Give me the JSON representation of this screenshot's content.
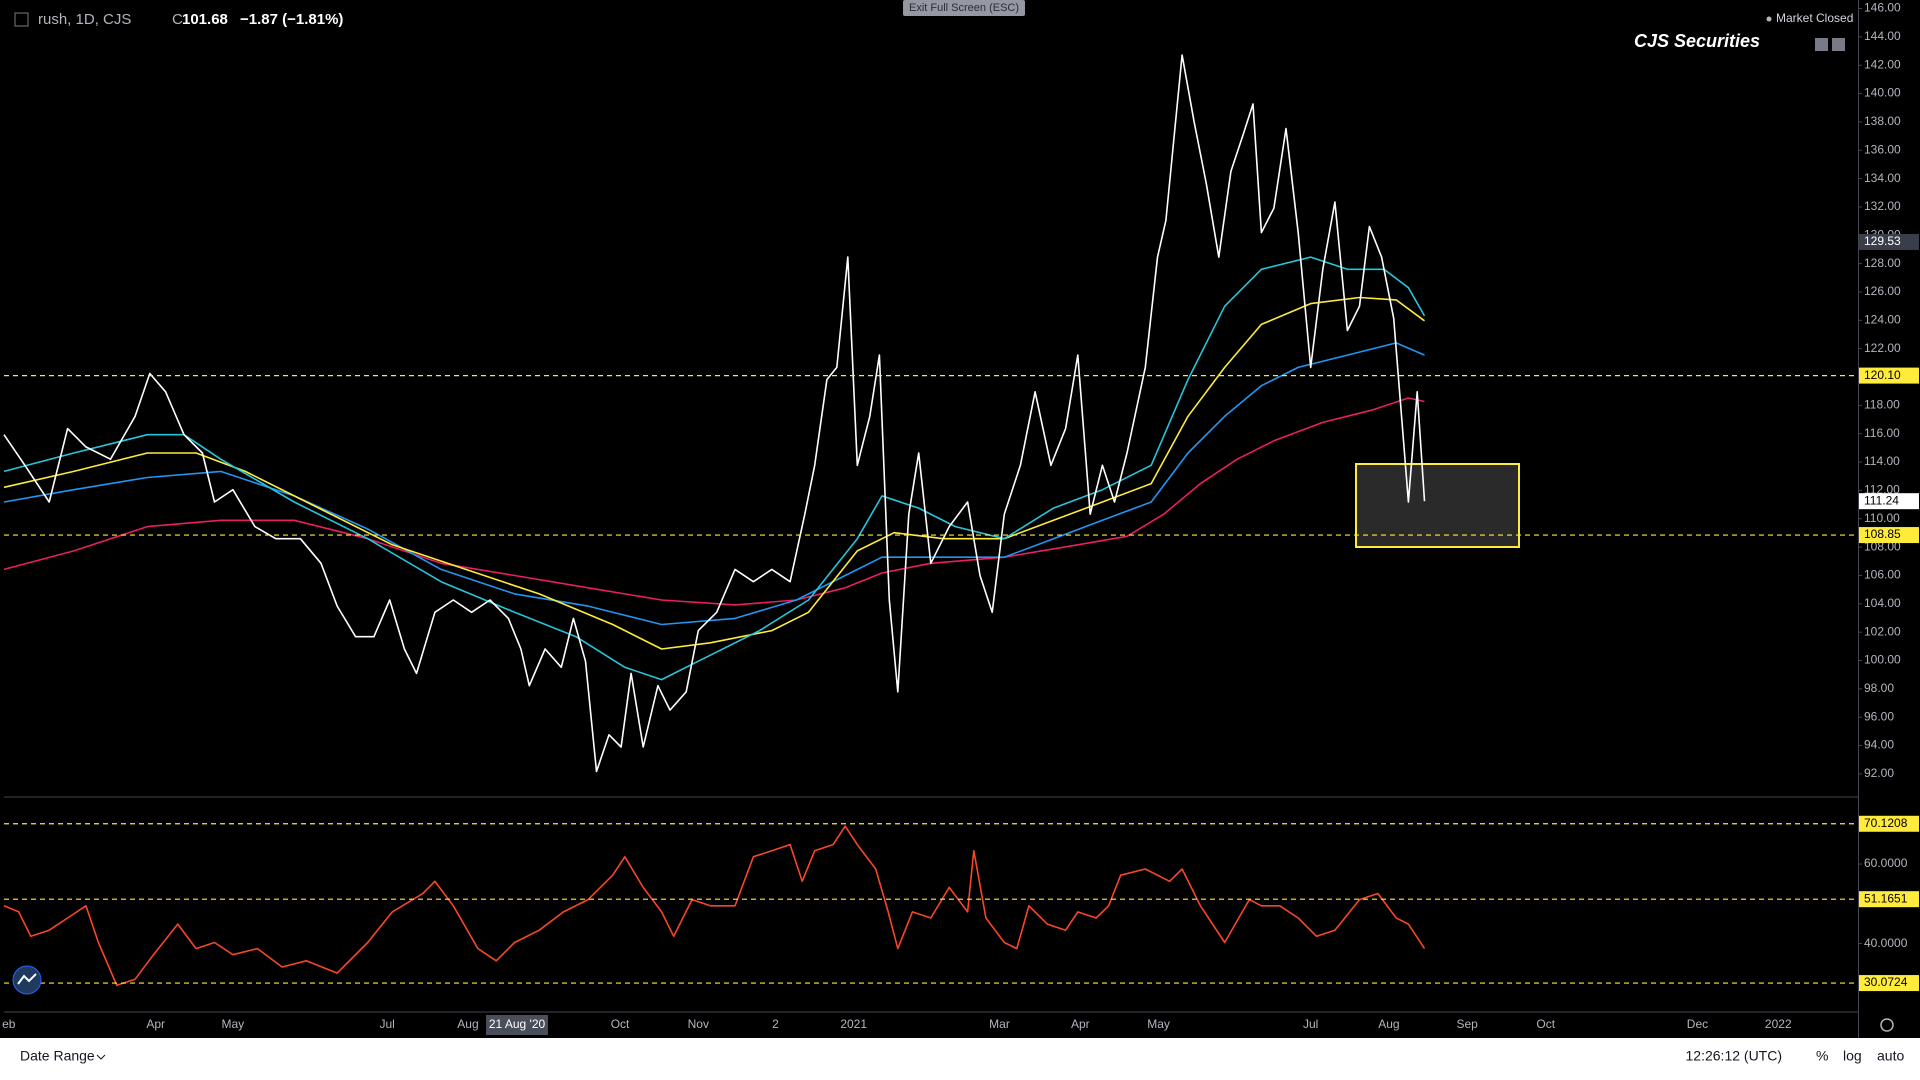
{
  "chart_data": [
    {
      "type": "line",
      "xlim": [
        0,
        504.7
      ],
      "ylim": [
        90.44,
        146.6
      ],
      "xticks": [
        {
          "value": 1.3,
          "label": "eb"
        },
        {
          "value": 41.3,
          "label": "Apr"
        },
        {
          "value": 62.3,
          "label": "May"
        },
        {
          "value": 104.3,
          "label": "Jul"
        },
        {
          "value": 126.3,
          "label": "Aug"
        },
        {
          "value": 167.7,
          "label": "Oct"
        },
        {
          "value": 189,
          "label": "Nov"
        },
        {
          "value": 210,
          "label": "2"
        },
        {
          "value": 231.3,
          "label": "2021"
        },
        {
          "value": 271,
          "label": "Mar"
        },
        {
          "value": 293,
          "label": "Apr"
        },
        {
          "value": 314.3,
          "label": "May"
        },
        {
          "value": 355.7,
          "label": "Jul"
        },
        {
          "value": 377,
          "label": "Aug"
        },
        {
          "value": 398.3,
          "label": "Sep"
        },
        {
          "value": 419.7,
          "label": "Oct"
        },
        {
          "value": 461,
          "label": "Dec"
        },
        {
          "value": 483,
          "label": "2022"
        }
      ],
      "yticks": [
        {
          "value": 92,
          "label": "92.00"
        },
        {
          "value": 94,
          "label": "94.00"
        },
        {
          "value": 96,
          "label": "96.00"
        },
        {
          "value": 98,
          "label": "98.00"
        },
        {
          "value": 100,
          "label": "100.00"
        },
        {
          "value": 102,
          "label": "102.00"
        },
        {
          "value": 104,
          "label": "104.00"
        },
        {
          "value": 106,
          "label": "106.00"
        },
        {
          "value": 108,
          "label": "108.00"
        },
        {
          "value": 110,
          "label": "110.00"
        },
        {
          "value": 112,
          "label": "112.00"
        },
        {
          "value": 114,
          "label": "114.00"
        },
        {
          "value": 116,
          "label": "116.00"
        },
        {
          "value": 118,
          "label": "118.00"
        },
        {
          "value": 120,
          "label": "120.00"
        },
        {
          "value": 122,
          "label": "122.00"
        },
        {
          "value": 124,
          "label": "124.00"
        },
        {
          "value": 126,
          "label": "126.00"
        },
        {
          "value": 128,
          "label": "128.00"
        },
        {
          "value": 130,
          "label": "130.00"
        },
        {
          "value": 132,
          "label": "132.00"
        },
        {
          "value": 134,
          "label": "134.00"
        },
        {
          "value": 136,
          "label": "136.00"
        },
        {
          "value": 138,
          "label": "138.00"
        },
        {
          "value": 140,
          "label": "140.00"
        },
        {
          "value": 142,
          "label": "142.00"
        },
        {
          "value": 144,
          "label": "144.00"
        },
        {
          "value": 146,
          "label": "146.00"
        }
      ],
      "levels": [
        {
          "value": 120.1,
          "label": "120.10"
        },
        108.85
      ],
      "level_color": "#ffeb3b",
      "tags": [
        {
          "value": 129.53,
          "color": "#3a3e4a",
          "text_color": "#ffffff"
        },
        {
          "value": 111.24,
          "color": "#ffffff",
          "text_color": "#000000"
        }
      ],
      "series": [
        {
          "color": "#e91e63",
          "x": [
            0,
            19,
            39,
            59,
            79,
            99,
            119,
            139,
            159,
            179,
            199,
            215.7,
            229,
            239,
            252.3,
            272.3,
            292.3,
            305.7,
            315.7,
            325.7,
            335.7,
            345.7,
            359,
            372.3,
            382.3,
            386.7
          ],
          "values": [
            106.43,
            107.73,
            109.45,
            109.89,
            109.89,
            108.59,
            106.86,
            106.0,
            105.13,
            104.27,
            103.92,
            104.27,
            105.13,
            106.17,
            106.86,
            107.29,
            108.16,
            108.76,
            110.32,
            112.48,
            114.2,
            115.5,
            116.8,
            117.66,
            118.52,
            118.27
          ]
        },
        {
          "color": "#2196f3",
          "x": [
            0,
            19,
            39,
            59,
            79,
            99,
            119,
            139,
            159,
            179,
            199,
            215.7,
            229,
            239,
            252.3,
            272.3,
            285.7,
            299,
            312.3,
            322.3,
            332.3,
            342.3,
            352.3,
            365.7,
            379,
            386.7
          ],
          "values": [
            111.18,
            112.05,
            112.91,
            113.34,
            111.61,
            109.28,
            106.43,
            104.7,
            103.84,
            102.54,
            102.97,
            104.27,
            106.0,
            107.29,
            107.29,
            107.29,
            108.59,
            109.89,
            111.18,
            114.64,
            117.23,
            119.39,
            120.68,
            121.55,
            122.41,
            121.55
          ]
        },
        {
          "color": "#ffeb3b",
          "x": [
            0,
            19,
            39,
            52.3,
            65.7,
            85.7,
            105.7,
            125.7,
            145.7,
            165.7,
            179,
            192.3,
            209,
            219,
            232.3,
            242.3,
            255.7,
            272.3,
            285.7,
            299,
            312.3,
            322.3,
            332.3,
            342.3,
            355.7,
            369,
            379,
            386.7
          ],
          "values": [
            112.22,
            113.34,
            114.64,
            114.64,
            113.34,
            110.75,
            108.16,
            106.43,
            104.7,
            102.54,
            100.81,
            101.25,
            102.11,
            103.4,
            107.73,
            109.02,
            108.59,
            108.59,
            109.89,
            111.18,
            112.48,
            117.23,
            120.68,
            123.71,
            125.18,
            125.61,
            125.44,
            123.97
          ]
        },
        {
          "color": "#26c6da",
          "x": [
            0,
            19,
            39,
            49,
            59,
            79,
            99,
            119,
            139,
            155.7,
            169,
            179,
            189,
            205.7,
            219,
            232.3,
            239,
            249,
            259,
            272.3,
            285.7,
            299,
            312.3,
            322.3,
            332.3,
            342.3,
            355.7,
            365.7,
            375.7,
            382.3,
            386.7
          ],
          "values": [
            113.34,
            114.64,
            115.93,
            115.93,
            114.2,
            111.18,
            108.59,
            105.56,
            103.4,
            101.68,
            99.52,
            98.65,
            99.95,
            102.11,
            104.27,
            108.59,
            111.61,
            110.75,
            109.45,
            108.59,
            110.75,
            112.05,
            113.77,
            119.82,
            125.0,
            127.6,
            128.46,
            127.6,
            127.6,
            126.3,
            124.31
          ]
        },
        {
          "color": "#ffffff",
          "x": [
            0,
            5.7,
            12.3,
            17.3,
            22.3,
            29,
            35.7,
            39.7,
            44,
            49,
            54,
            57.3,
            62.3,
            68.3,
            74,
            80.7,
            86.3,
            90.7,
            95.7,
            100.7,
            105,
            109,
            112.3,
            117.3,
            122.3,
            127.3,
            132.3,
            137.3,
            140.7,
            143,
            147.3,
            151.7,
            155,
            158.3,
            161.3,
            164.7,
            168,
            170.7,
            174,
            178,
            181.3,
            185.7,
            189,
            194,
            199,
            204,
            209,
            214,
            218,
            220.7,
            224,
            226.7,
            229.7,
            232.3,
            235.7,
            238.3,
            241,
            243.3,
            246.3,
            249,
            252.3,
            257.3,
            262.3,
            265.7,
            269,
            272.3,
            276.7,
            280.7,
            285,
            289,
            292.3,
            295.7,
            299,
            302.3,
            305.7,
            310.7,
            314,
            316.3,
            320.7,
            324,
            327.3,
            330.7,
            334,
            337.3,
            340,
            342.3,
            345.7,
            349,
            352.3,
            355.7,
            359,
            362.3,
            365.7,
            369,
            371.7,
            375,
            378.3,
            382.3,
            384.7,
            386.7
          ],
          "values": [
            115.93,
            113.77,
            111.18,
            116.36,
            115.07,
            114.2,
            117.23,
            120.25,
            118.96,
            115.93,
            114.64,
            111.18,
            112.05,
            109.45,
            108.59,
            108.59,
            106.86,
            103.84,
            101.68,
            101.68,
            104.27,
            100.81,
            99.09,
            103.4,
            104.27,
            103.4,
            104.27,
            102.97,
            100.81,
            98.22,
            100.81,
            99.52,
            102.97,
            99.95,
            92.17,
            94.76,
            93.9,
            99.09,
            93.9,
            98.22,
            96.5,
            97.79,
            102.11,
            103.4,
            106.43,
            105.56,
            106.43,
            105.56,
            110.32,
            113.77,
            119.82,
            120.68,
            128.46,
            113.77,
            117.23,
            121.55,
            104.27,
            97.79,
            110.32,
            114.64,
            106.86,
            109.45,
            111.18,
            106.0,
            103.4,
            110.32,
            113.77,
            118.96,
            113.77,
            116.36,
            121.55,
            110.32,
            113.77,
            111.18,
            114.64,
            120.68,
            128.46,
            131.05,
            142.72,
            137.97,
            133.65,
            128.46,
            134.51,
            137.1,
            139.26,
            130.19,
            131.92,
            137.53,
            130.19,
            120.68,
            127.6,
            132.35,
            123.28,
            125.0,
            130.62,
            128.46,
            124.14,
            111.18,
            118.96,
            111.24
          ]
        }
      ]
    },
    {
      "type": "line",
      "xlim": [
        0,
        504.7
      ],
      "ylim": [
        23.05,
        76.6
      ],
      "yticks": [
        {
          "value": 40,
          "label": "40.0000"
        },
        {
          "value": 60,
          "label": "60.0000"
        }
      ],
      "levels": [
        70.1208,
        51.1651,
        30.0724
      ],
      "level_color": "#ffeb3b",
      "series": [
        {
          "color": "#f7462a",
          "x": [
            0,
            4,
            7.3,
            12.3,
            17.3,
            22.3,
            25.7,
            30.7,
            35.7,
            40.7,
            47.3,
            52.3,
            57.3,
            62.3,
            69,
            75.7,
            82.3,
            90.7,
            99,
            105.7,
            114,
            117.3,
            122.3,
            129,
            134,
            139,
            145.7,
            152.3,
            159,
            165.7,
            169,
            174,
            179,
            182.3,
            187.3,
            192.3,
            199,
            204,
            209,
            214,
            217.3,
            220.7,
            225.7,
            229,
            232.3,
            237.3,
            240.7,
            243.3,
            247.3,
            252.3,
            257.3,
            262.3,
            264,
            267.3,
            272.3,
            275.7,
            279,
            284,
            289,
            292.3,
            297.3,
            300.7,
            304,
            310.7,
            317.3,
            320.7,
            325.7,
            332.3,
            339,
            342.3,
            347.3,
            352.3,
            357.3,
            362.3,
            369,
            374,
            379,
            382.3,
            386.7
          ],
          "values": [
            49.51,
            47.97,
            41.82,
            43.36,
            46.44,
            49.51,
            40.28,
            29.51,
            31.05,
            37.2,
            44.89,
            38.74,
            40.28,
            37.2,
            38.74,
            34.12,
            35.66,
            32.58,
            40.28,
            47.97,
            52.59,
            55.66,
            49.51,
            38.74,
            35.66,
            40.28,
            43.36,
            47.97,
            51.05,
            57.2,
            61.82,
            54.12,
            47.97,
            41.82,
            51.05,
            49.51,
            49.51,
            61.82,
            63.36,
            64.89,
            55.66,
            63.36,
            64.89,
            69.51,
            64.89,
            58.74,
            47.97,
            38.74,
            47.97,
            46.44,
            54.12,
            47.97,
            63.36,
            46.44,
            40.28,
            38.74,
            49.51,
            44.89,
            43.36,
            47.97,
            46.44,
            49.51,
            57.2,
            58.74,
            55.66,
            58.74,
            49.51,
            40.28,
            51.05,
            49.51,
            49.51,
            46.44,
            41.82,
            43.36,
            51.05,
            52.59,
            46.44,
            44.89,
            38.74
          ]
        }
      ]
    }
  ],
  "ui": {
    "symbol": "rush, 1D, CJS",
    "close_prefix": "C",
    "close": 101.68,
    "change": "−1.87 (−1.81%)",
    "exit_button": "Exit Full Screen (ESC)",
    "market_status": "Market Closed",
    "watermark": "CJS Securities",
    "crosshair_date": "21 Aug '20",
    "date_range": "Date Range",
    "clock": "12:26:12 (UTC)",
    "percent": "%",
    "log": "log",
    "auto": "auto"
  }
}
